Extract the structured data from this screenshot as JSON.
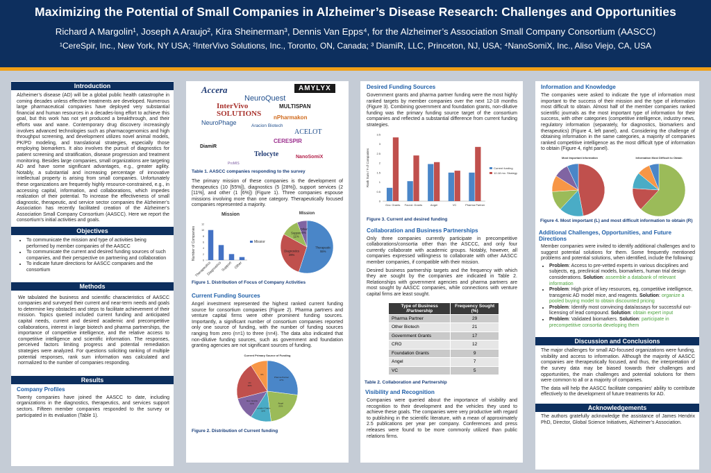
{
  "header": {
    "title": "Maximizing the Potential of Small Companies in Alzheimer’s Disease Research: Challenges and Opportunities",
    "authors": "Richard A Margolin¹, Joseph A Araujo², Kira Sheinerman³, Dennis Van Epps⁴, for the Alzheimer’s Association Small Company Consortium (AASCC)",
    "affiliations": "¹CereSpir, Inc., New York, NY USA; ²InterVivo Solutions, Inc., Toronto, ON, Canada; ³ DiamiR, LLC, Princeton, NJ, USA; ⁴NanoSomiX, Inc., Aliso Viejo, CA, USA"
  },
  "col1": {
    "intro_title": "Introduction",
    "intro_text": "Alzheimer’s disease (AD) will be a global public health catastrophe in coming decades unless effective treatments are developed. Numerous large pharmaceutical companies have deployed very substantial financial and human resources in a decades-long effort to achieve this goal, but this work has not yet produced a breakthrough, and their efforts wax and wane. Contemporary drug discovery increasingly involves advanced technologies such as pharmacogenomics and high throughput screening, and development utilizes novel animal models, PK/PD modeling, and translational strategies, especially those employing biomarkers. It also involves the pursuit of diagnostics for patient screening and stratification, disease progression and treatment monitoring. Besides large companies, small organizations are targeting AD and have some significant advantages, e.g., greater agility. Notably, a substantial and increasing percentage of innovative intellectual property is arising from small companies. Unfortunately these organizations are frequently highly resource-constrained, e.g., in accessing capital, information, and collaborations, which impedes realization of their potential. To increase the effectiveness of small diagnostic, therapeutic, and service sector companies the Alzheimer’s Association has recently facilitated creation of the Alzheimer’s Association Small Company Consortium (AASCC). Here we report the consortium’s initial activities and goals.",
    "objectives_title": "Objectives",
    "objectives": [
      "To communicate the mission and type of activities being performed by member companies of the AASCC",
      "To communicate the current and desired funding sources of such companies, and their perspective on partnering and collaboration",
      "To indicate future directions for AASCC companies and the consortium"
    ],
    "methods_title": "Methods",
    "methods_text": "We tabulated the business and scientific characteristics of AASCC companies and surveyed their current and near-term needs and goals to determine key obstacles and steps to facilitate achievement of their mission. Topics queried included current funding and anticipated capital needs, current and desired academic and precompetitive collaborations, interest in large biotech and pharma partnerships, the importance of competitive intelligence, and the relative access to competitive intelligence and scientific information. The responses, perceived factors limiting progress and potential remediation strategies were analyzed. For questions soliciting ranking of multiple potential responses, rank sum information was calculated and normalized to the number of companies responding.",
    "results_title": "Results",
    "company_profiles_title": "Company Profiles",
    "company_profiles_text": "Twenty companies have joined the AASCC to date, including organizations in the diagnostics, therapeutics, and services support sectors. Fifteen member companies responded to the survey or participated in its evaluation (Table 1)."
  },
  "col2": {
    "logos": [
      "Accera",
      "AMYLYX",
      "NeuroQuest",
      "InterVivo SOLUTIONS",
      "MULTISPAN",
      "Aracion Biotech",
      "nPharmakon",
      "NeuroPhage",
      "ACELOT",
      "CERESPIR",
      "DiamiR",
      "Telocyte",
      "NanoSomiX",
      "ProMIS"
    ],
    "table1_caption": "Table 1. AASCC companies responding to the survey",
    "mission_text": "The primary mission of these companies is the development of therapeutics (10 [55%]), diagnostics (5 [28%]), support services (2 [11%], and other (1 [6%]) (Figure 1). Three companies espouse missions involving more than one category. Therapeutically focused companies represented a majority.",
    "fig1_caption": "Figure 1. Distribution of Focus of Company Activities",
    "current_funding_title": "Current Funding Sources",
    "current_funding_text": "Angel investment represented the highest ranked current funding source for consortium companies (Figure 2). Pharma partners and venture capital firms were other prominent funding sources. Importantly, a significant number of consortium companies reported only one source of funding, with the number of funding sources ranging from zero (n=1) to three (n=4). The data also indicated that non-dilutive funding sources, such as government and foundation granting agencies are not significant sources of funding.",
    "fig2_caption": "Figure 2. Distribution of Current funding"
  },
  "col3": {
    "desired_title": "Desired Funding Sources",
    "desired_text": "Government grants and pharma partner funding were the most highly ranked targets by member companies over the next 12-18 months (Figure 3). Combining government and foundation grants, non-dilutive funding was the primary funding source target of the consortium companies and reflected a substantial difference from current funding strategies.",
    "fig3_caption": "Figure 3. Current and desired funding",
    "collab_title": "Collaboration and Business Partnerships",
    "collab_text1": "Only three companies currently participate in precompetitive collaborations/consortia other than the ASCCC, and only four currently collaborate with academic groups. Notably, however, all companies expressed willingness to collaborate with other AASCC member companies, if compatible with their mission.",
    "collab_text2": "Desired business partnership targets and the frequency with which they are sought by the companies are indicated in Table 2. Relationships with government agencies and pharma partners are most sought by AASCC companies, while connections with venture capital firms are least sought.",
    "table2": {
      "col1": "Type of Business /Partnership",
      "col2": "Frequency Sought (%)",
      "rows": [
        {
          "type": "Pharma Partner",
          "freq": "29"
        },
        {
          "type": "Other Biotech",
          "freq": "21"
        },
        {
          "type": "Government Grants",
          "freq": "17"
        },
        {
          "type": "CRO",
          "freq": "12"
        },
        {
          "type": "Foundation Grants",
          "freq": "9"
        },
        {
          "type": "Angel",
          "freq": "7"
        },
        {
          "type": "VC",
          "freq": "5"
        }
      ]
    },
    "table2_caption": "Table 2. Collaboration and Partnership",
    "visibility_title": "Visibility and Recognition",
    "visibility_text": "Companies were queried about the importance of visibility and recognition to their development and the vehicles they used to achieve these goals. The companies were very productive with regard to publishing in the scientific literature, with a mean of approximately 2.5 publications per year per company. Conferences and press releases were found to be more commonly utilized than public relations firms."
  },
  "col4": {
    "info_title": "Information and Knowledge",
    "info_text": "The companies were asked to indicate the type of information most important to the success of their mission and the type of information most difficult to obtain. Almost half of the member companies ranked scientific journals as the most important type of information for their success, with other categories (competitive intelligence, industry news, regulatory information (separately, for diagnostics, biomarkers and therapeutics) (Figure 4, left panel), and. Considering the challenge of obtaining information in the same categories, a majority of companies ranked competitive intelligence as the most difficult type of information to obtain (Figure 4, right panel).",
    "fig4_caption": "Figure 4. Most important (L) and most difficult information to obtain (R)",
    "additional_title": "Additional Challenges, Opportunities, and Future Directions",
    "additional_text": "Member companies were invited to identify additional challenges and to suggest potential solutions for them. Some frequently mentioned problems and potential solutions, when identified, include the following:",
    "problems": [
      {
        "label": "Problem",
        "text": ": Access to pre-vetted experts in various disciplines and subjects, eg, preclinical models, biomarkers, human trial design considerations.",
        "sol_label": "Solution",
        "sol": "assemble a databank of relevant information"
      },
      {
        "label": "Problem",
        "text": ": High price of key resources, eg, competitive intelligence, transgenic AD model mice, and reagents.",
        "sol_label": "Solution",
        "sol": "organize a pooled buying model to obtain discounted pricing"
      },
      {
        "label": "Problem",
        "text": ": Identify most convincing data/assays for successful out-licensing of lead compound.",
        "sol_label": "Solution",
        "sol": "obtain expert input"
      },
      {
        "label": "Problem",
        "text": ": Validated biomarkers.",
        "sol_label": "Solution",
        "sol": "participate in precompetitive consortia developing them"
      }
    ],
    "discussion_title": "Discussion and Conclusions",
    "discussion_text1": "The major challenges for small AD-focused organizations were funding, visibility and access to information. Although the majority of AASCC companies are therapeutically focused, and thus, the interpretation of the survey data may be biased towards their challenges and opportunities, the main challenges and potential solutions for them were common to all or a majority of companies.",
    "discussion_text2": "The data will help the AASCC facilitate companies’ ability to contribute effectively to the development of future treatments for AD.",
    "ack_title": "Acknowledgements",
    "ack_text": "The authors gratefully acknowledge the assistance of James Hendrix PhD, Director, Global Science Initiatives, Alzheimer’s Association."
  },
  "chart_data": [
    {
      "type": "bar",
      "title": "Mission",
      "ylabel": "Number of Companies",
      "categories": [
        "Therapeutics",
        "Diagnostics",
        "Support",
        "Other"
      ],
      "series": [
        {
          "name": "Mission",
          "values": [
            10,
            5,
            2,
            1
          ]
        }
      ],
      "ylim": [
        0,
        12
      ],
      "ytick_labels": [
        "0",
        "2",
        "4",
        "6",
        "8",
        "10",
        "12"
      ],
      "color": "#4472c4"
    },
    {
      "type": "pie",
      "title": "Mission",
      "labels": [
        "Therapeutics",
        "Diagnostics",
        "Support",
        "Other"
      ],
      "data_labels": [
        "Therapeutic 55%",
        "Diagnostics 28%",
        "Support 11%",
        "Other 6%"
      ],
      "values": [
        55,
        28,
        11,
        6
      ],
      "colors": [
        "#4a86c8",
        "#c0504d",
        "#9bbb59",
        "#8064a2"
      ]
    },
    {
      "type": "pie",
      "title": "Current Primary Source of Funding",
      "labels": [
        "Pharma Partner",
        "Angel",
        "Founder Grants",
        "Gov. Grants",
        "VC",
        "Angels2"
      ],
      "data_labels": [
        "Pharma Partner 27%",
        "Angel 21%",
        "Founder Grants 11%",
        "Gov. Grants 12%",
        "VC 20%",
        "9%"
      ],
      "values": [
        27,
        21,
        11,
        12,
        20,
        9
      ],
      "colors": [
        "#4a86c8",
        "#9bbb59",
        "#4aacc6",
        "#8064a2",
        "#c0504d",
        "#f79646"
      ]
    },
    {
      "type": "bar",
      "ylabel": "Rank Sum / # of Companies",
      "categories": [
        "Gov. Grants",
        "Found. Grants",
        "Angel",
        "VC",
        "Pharma Partner"
      ],
      "series": [
        {
          "name": "Current funding",
          "values": [
            0.7,
            1.05,
            1.95,
            1.5,
            1.5
          ]
        },
        {
          "name": "12-18 mo. Strategy",
          "values": [
            3.35,
            2.4,
            2.05,
            1.6,
            2.85
          ]
        }
      ],
      "ylim": [
        0,
        3.5
      ],
      "ytick_labels": [
        "0",
        "0.5",
        "1",
        "1.5",
        "2",
        "2.5",
        "3",
        "3.5"
      ],
      "colors": [
        "#4a86c8",
        "#c0504d"
      ]
    },
    {
      "type": "pie",
      "title": "Most Important Information",
      "values": [
        47,
        15,
        12,
        10,
        9,
        7
      ],
      "colors": [
        "#c0504d",
        "#4aacc6",
        "#9bbb59",
        "#f79646",
        "#8064a2",
        "#4a86c8"
      ]
    },
    {
      "type": "pie",
      "title": "Information Most Difficult to Obtain",
      "values": [
        62,
        14,
        10,
        8,
        6
      ],
      "colors": [
        "#9bbb59",
        "#c0504d",
        "#4aacc6",
        "#f79646",
        "#4a86c8"
      ]
    }
  ]
}
